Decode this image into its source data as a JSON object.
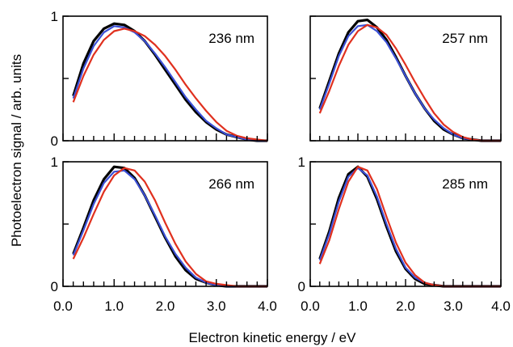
{
  "figure": {
    "ylabel": "Photoelectron signal / arb. units",
    "xlabel": "Electron kinetic energy / eV"
  },
  "chart_data": [
    {
      "type": "line",
      "title": "236 nm",
      "xlim": [
        0,
        4
      ],
      "ylim": [
        0,
        1
      ],
      "xticks": [
        "0.0",
        "1.0",
        "2.0",
        "3.0",
        "4.0"
      ],
      "yticks": [
        "0",
        "1"
      ],
      "series": [
        {
          "color": "#000000",
          "x": [
            0.2,
            0.4,
            0.6,
            0.8,
            1.0,
            1.2,
            1.4,
            1.6,
            1.8,
            2.0,
            2.2,
            2.4,
            2.6,
            2.8,
            3.0,
            3.2,
            3.4,
            3.6,
            3.8,
            4.0
          ],
          "y": [
            0.36,
            0.62,
            0.8,
            0.9,
            0.94,
            0.93,
            0.88,
            0.8,
            0.69,
            0.57,
            0.45,
            0.33,
            0.23,
            0.15,
            0.09,
            0.05,
            0.03,
            0.01,
            0.0,
            0.0
          ]
        },
        {
          "color": "#3b4fd6",
          "x": [
            0.2,
            0.4,
            0.6,
            0.8,
            1.0,
            1.2,
            1.4,
            1.6,
            1.8,
            2.0,
            2.2,
            2.4,
            2.6,
            2.8,
            3.0,
            3.2,
            3.4,
            3.6,
            3.8,
            4.0
          ],
          "y": [
            0.34,
            0.58,
            0.76,
            0.87,
            0.92,
            0.91,
            0.87,
            0.8,
            0.7,
            0.59,
            0.47,
            0.35,
            0.25,
            0.16,
            0.1,
            0.05,
            0.03,
            0.01,
            0.0,
            0.0
          ]
        },
        {
          "color": "#e0301e",
          "x": [
            0.2,
            0.4,
            0.6,
            0.8,
            1.0,
            1.2,
            1.4,
            1.6,
            1.8,
            2.0,
            2.2,
            2.4,
            2.6,
            2.8,
            3.0,
            3.2,
            3.4,
            3.6,
            3.8,
            4.0
          ],
          "y": [
            0.31,
            0.52,
            0.69,
            0.81,
            0.88,
            0.9,
            0.88,
            0.84,
            0.77,
            0.68,
            0.57,
            0.45,
            0.34,
            0.24,
            0.15,
            0.08,
            0.04,
            0.02,
            0.01,
            0.0
          ]
        }
      ]
    },
    {
      "type": "line",
      "title": "257 nm",
      "xlim": [
        0,
        4
      ],
      "ylim": [
        0,
        1
      ],
      "xticks": [
        "0.0",
        "1.0",
        "2.0",
        "3.0",
        "4.0"
      ],
      "yticks": [
        "0",
        "1"
      ],
      "series": [
        {
          "color": "#000000",
          "x": [
            0.2,
            0.4,
            0.6,
            0.8,
            1.0,
            1.2,
            1.4,
            1.6,
            1.8,
            2.0,
            2.2,
            2.4,
            2.6,
            2.8,
            3.0,
            3.2,
            3.4,
            3.6,
            3.8,
            4.0
          ],
          "y": [
            0.26,
            0.48,
            0.7,
            0.87,
            0.96,
            0.97,
            0.91,
            0.81,
            0.67,
            0.52,
            0.38,
            0.26,
            0.16,
            0.09,
            0.05,
            0.02,
            0.01,
            0.0,
            0.0,
            0.0
          ]
        },
        {
          "color": "#3b4fd6",
          "x": [
            0.2,
            0.4,
            0.6,
            0.8,
            1.0,
            1.2,
            1.4,
            1.6,
            1.8,
            2.0,
            2.2,
            2.4,
            2.6,
            2.8,
            3.0,
            3.2,
            3.4,
            3.6,
            3.8,
            4.0
          ],
          "y": [
            0.25,
            0.46,
            0.68,
            0.84,
            0.92,
            0.93,
            0.88,
            0.79,
            0.66,
            0.52,
            0.38,
            0.26,
            0.17,
            0.1,
            0.05,
            0.02,
            0.01,
            0.0,
            0.0,
            0.0
          ]
        },
        {
          "color": "#e0301e",
          "x": [
            0.2,
            0.4,
            0.6,
            0.8,
            1.0,
            1.2,
            1.4,
            1.6,
            1.8,
            2.0,
            2.2,
            2.4,
            2.6,
            2.8,
            3.0,
            3.2,
            3.4,
            3.6,
            3.8,
            4.0
          ],
          "y": [
            0.22,
            0.4,
            0.6,
            0.77,
            0.88,
            0.93,
            0.91,
            0.85,
            0.74,
            0.61,
            0.47,
            0.34,
            0.22,
            0.13,
            0.07,
            0.03,
            0.01,
            0.0,
            0.0,
            0.0
          ]
        }
      ]
    },
    {
      "type": "line",
      "title": "266 nm",
      "xlim": [
        0,
        4
      ],
      "ylim": [
        0,
        1
      ],
      "xticks": [
        "0.0",
        "1.0",
        "2.0",
        "3.0",
        "4.0"
      ],
      "yticks": [
        "0",
        "1"
      ],
      "series": [
        {
          "color": "#000000",
          "x": [
            0.2,
            0.4,
            0.6,
            0.8,
            1.0,
            1.2,
            1.4,
            1.6,
            1.8,
            2.0,
            2.2,
            2.4,
            2.6,
            2.8,
            3.0,
            3.2,
            3.4,
            3.6,
            3.8,
            4.0
          ],
          "y": [
            0.26,
            0.47,
            0.69,
            0.86,
            0.96,
            0.95,
            0.87,
            0.73,
            0.56,
            0.39,
            0.24,
            0.13,
            0.06,
            0.03,
            0.01,
            0.0,
            0.0,
            0.0,
            0.0,
            0.0
          ]
        },
        {
          "color": "#3b4fd6",
          "x": [
            0.2,
            0.4,
            0.6,
            0.8,
            1.0,
            1.2,
            1.4,
            1.6,
            1.8,
            2.0,
            2.2,
            2.4,
            2.6,
            2.8,
            3.0,
            3.2,
            3.4,
            3.6,
            3.8,
            4.0
          ],
          "y": [
            0.25,
            0.45,
            0.66,
            0.83,
            0.92,
            0.93,
            0.86,
            0.73,
            0.57,
            0.4,
            0.26,
            0.15,
            0.07,
            0.03,
            0.01,
            0.0,
            0.0,
            0.0,
            0.0,
            0.0
          ]
        },
        {
          "color": "#e0301e",
          "x": [
            0.2,
            0.4,
            0.6,
            0.8,
            1.0,
            1.2,
            1.4,
            1.6,
            1.8,
            2.0,
            2.2,
            2.4,
            2.6,
            2.8,
            3.0,
            3.2,
            3.4,
            3.6,
            3.8,
            4.0
          ],
          "y": [
            0.22,
            0.39,
            0.58,
            0.76,
            0.89,
            0.95,
            0.93,
            0.84,
            0.69,
            0.51,
            0.34,
            0.2,
            0.1,
            0.04,
            0.02,
            0.01,
            0.0,
            0.0,
            0.0,
            0.0
          ]
        }
      ]
    },
    {
      "type": "line",
      "title": "285 nm",
      "xlim": [
        0,
        4
      ],
      "ylim": [
        0,
        1
      ],
      "xticks": [
        "0.0",
        "1.0",
        "2.0",
        "3.0",
        "4.0"
      ],
      "yticks": [
        "0",
        "1"
      ],
      "series": [
        {
          "color": "#000000",
          "x": [
            0.2,
            0.4,
            0.6,
            0.8,
            1.0,
            1.2,
            1.4,
            1.6,
            1.8,
            2.0,
            2.2,
            2.4,
            2.6,
            2.8,
            3.0,
            3.2,
            3.4,
            3.6,
            3.8,
            4.0
          ],
          "y": [
            0.22,
            0.44,
            0.71,
            0.9,
            0.96,
            0.88,
            0.7,
            0.48,
            0.28,
            0.14,
            0.06,
            0.02,
            0.01,
            0.0,
            0.0,
            0.0,
            0.0,
            0.0,
            0.0,
            0.0
          ]
        },
        {
          "color": "#3b4fd6",
          "x": [
            0.2,
            0.4,
            0.6,
            0.8,
            1.0,
            1.2,
            1.4,
            1.6,
            1.8,
            2.0,
            2.2,
            2.4,
            2.6,
            2.8,
            3.0,
            3.2,
            3.4,
            3.6,
            3.8,
            4.0
          ],
          "y": [
            0.21,
            0.42,
            0.68,
            0.88,
            0.95,
            0.89,
            0.72,
            0.5,
            0.3,
            0.15,
            0.07,
            0.03,
            0.01,
            0.0,
            0.0,
            0.0,
            0.0,
            0.0,
            0.0,
            0.0
          ]
        },
        {
          "color": "#e0301e",
          "x": [
            0.2,
            0.4,
            0.6,
            0.8,
            1.0,
            1.2,
            1.4,
            1.6,
            1.8,
            2.0,
            2.2,
            2.4,
            2.6,
            2.8,
            3.0,
            3.2,
            3.4,
            3.6,
            3.8,
            4.0
          ],
          "y": [
            0.18,
            0.37,
            0.62,
            0.84,
            0.96,
            0.93,
            0.78,
            0.56,
            0.35,
            0.19,
            0.09,
            0.03,
            0.01,
            0.0,
            0.0,
            0.0,
            0.0,
            0.0,
            0.0,
            0.0
          ]
        }
      ]
    }
  ]
}
